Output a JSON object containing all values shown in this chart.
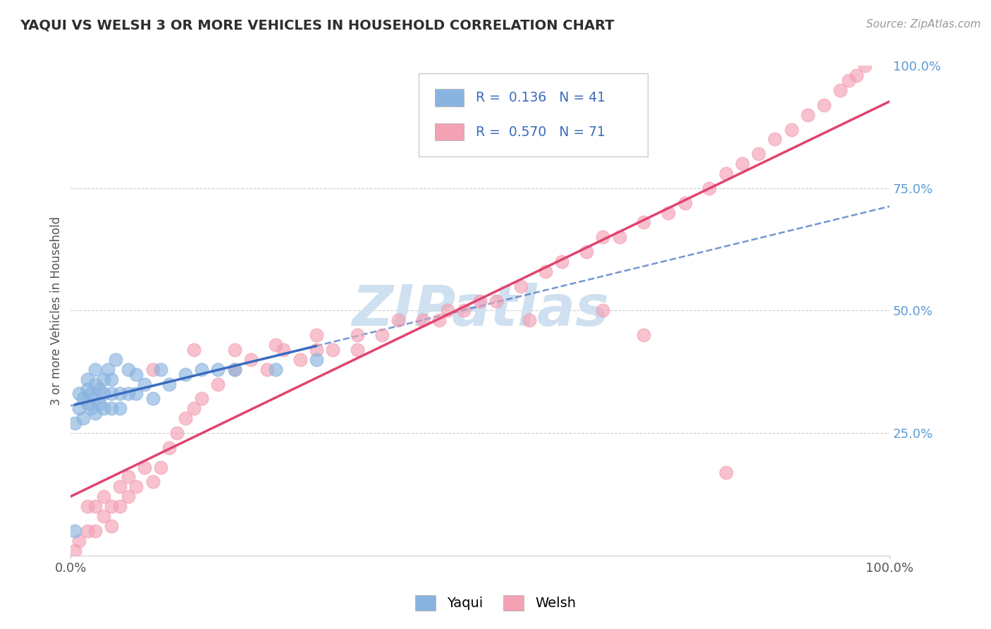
{
  "title": "YAQUI VS WELSH 3 OR MORE VEHICLES IN HOUSEHOLD CORRELATION CHART",
  "source_text": "Source: ZipAtlas.com",
  "ylabel": "3 or more Vehicles in Household",
  "xlim": [
    0.0,
    1.0
  ],
  "ylim": [
    0.0,
    1.0
  ],
  "ytick_positions": [
    0.0,
    0.25,
    0.5,
    0.75,
    1.0
  ],
  "legend_R": [
    "0.136",
    "0.570"
  ],
  "legend_N": [
    "41",
    "71"
  ],
  "yaqui_color": "#8ab4e0",
  "welsh_color": "#f4a0b5",
  "yaqui_line_color": "#3a6bbf",
  "welsh_line_color": "#e0446e",
  "background_color": "#ffffff",
  "grid_color": "#cccccc",
  "watermark_text": "ZIPatlas",
  "watermark_color": "#cfe0f0",
  "yaqui_x": [
    0.005,
    0.01,
    0.01,
    0.015,
    0.015,
    0.02,
    0.02,
    0.02,
    0.025,
    0.025,
    0.03,
    0.03,
    0.03,
    0.03,
    0.035,
    0.035,
    0.04,
    0.04,
    0.04,
    0.045,
    0.05,
    0.05,
    0.05,
    0.055,
    0.06,
    0.06,
    0.07,
    0.07,
    0.08,
    0.08,
    0.09,
    0.1,
    0.11,
    0.12,
    0.14,
    0.16,
    0.18,
    0.2,
    0.25,
    0.3,
    0.005
  ],
  "yaqui_y": [
    0.27,
    0.3,
    0.33,
    0.28,
    0.32,
    0.31,
    0.34,
    0.36,
    0.3,
    0.33,
    0.29,
    0.32,
    0.35,
    0.38,
    0.31,
    0.34,
    0.3,
    0.33,
    0.36,
    0.38,
    0.3,
    0.33,
    0.36,
    0.4,
    0.3,
    0.33,
    0.33,
    0.38,
    0.33,
    0.37,
    0.35,
    0.32,
    0.38,
    0.35,
    0.37,
    0.38,
    0.38,
    0.38,
    0.38,
    0.4,
    0.05
  ],
  "welsh_x": [
    0.005,
    0.01,
    0.02,
    0.02,
    0.03,
    0.03,
    0.04,
    0.04,
    0.05,
    0.05,
    0.06,
    0.06,
    0.07,
    0.07,
    0.08,
    0.09,
    0.1,
    0.11,
    0.12,
    0.13,
    0.14,
    0.15,
    0.16,
    0.18,
    0.2,
    0.22,
    0.24,
    0.26,
    0.28,
    0.3,
    0.32,
    0.35,
    0.38,
    0.4,
    0.43,
    0.46,
    0.48,
    0.5,
    0.52,
    0.55,
    0.58,
    0.6,
    0.63,
    0.65,
    0.67,
    0.7,
    0.73,
    0.75,
    0.78,
    0.8,
    0.82,
    0.84,
    0.86,
    0.88,
    0.9,
    0.92,
    0.94,
    0.95,
    0.96,
    0.97,
    0.56,
    0.1,
    0.2,
    0.3,
    0.65,
    0.7,
    0.15,
    0.25,
    0.35,
    0.45,
    0.8
  ],
  "welsh_y": [
    0.01,
    0.03,
    0.05,
    0.1,
    0.05,
    0.1,
    0.08,
    0.12,
    0.06,
    0.1,
    0.1,
    0.14,
    0.12,
    0.16,
    0.14,
    0.18,
    0.15,
    0.18,
    0.22,
    0.25,
    0.28,
    0.3,
    0.32,
    0.35,
    0.38,
    0.4,
    0.38,
    0.42,
    0.4,
    0.42,
    0.42,
    0.45,
    0.45,
    0.48,
    0.48,
    0.5,
    0.5,
    0.52,
    0.52,
    0.55,
    0.58,
    0.6,
    0.62,
    0.65,
    0.65,
    0.68,
    0.7,
    0.72,
    0.75,
    0.78,
    0.8,
    0.82,
    0.85,
    0.87,
    0.9,
    0.92,
    0.95,
    0.97,
    0.98,
    1.0,
    0.48,
    0.38,
    0.42,
    0.45,
    0.5,
    0.45,
    0.42,
    0.43,
    0.42,
    0.48,
    0.17
  ]
}
